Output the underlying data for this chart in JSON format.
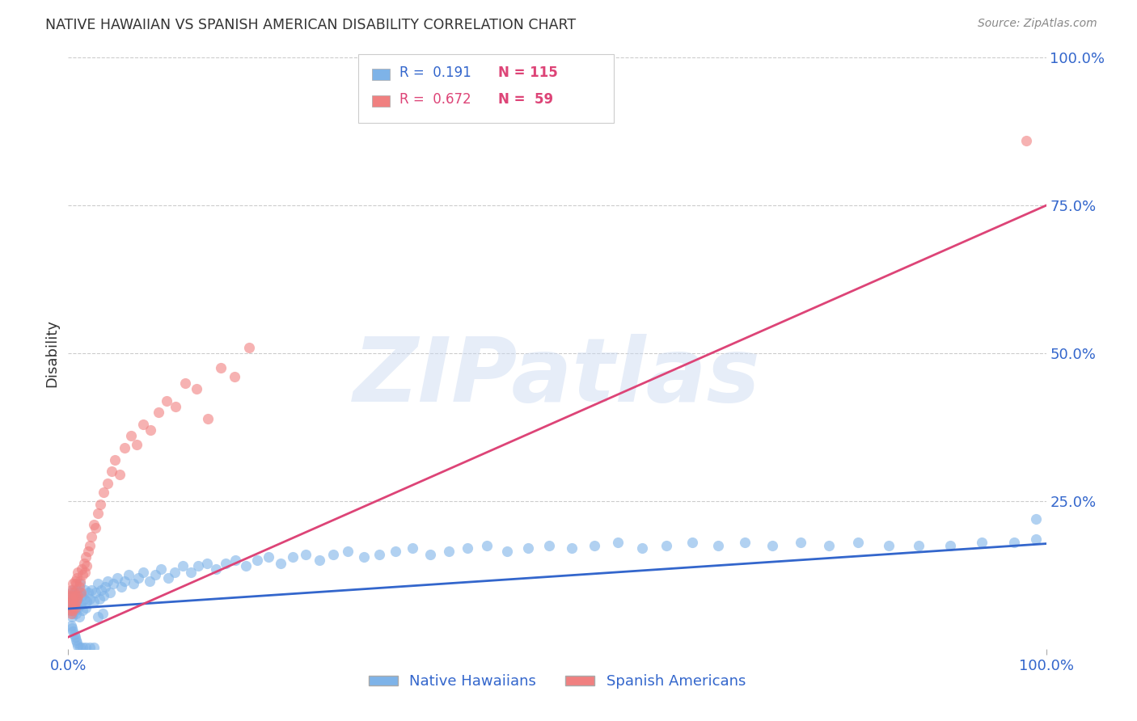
{
  "title": "NATIVE HAWAIIAN VS SPANISH AMERICAN DISABILITY CORRELATION CHART",
  "source": "Source: ZipAtlas.com",
  "ylabel": "Disability",
  "watermark": "ZIPatlas",
  "xlim": [
    0,
    1.0
  ],
  "ylim": [
    0,
    1.0
  ],
  "ytick_labels": [
    "100.0%",
    "75.0%",
    "50.0%",
    "25.0%"
  ],
  "ytick_positions": [
    1.0,
    0.75,
    0.5,
    0.25
  ],
  "grid_color": "#cccccc",
  "background_color": "#ffffff",
  "blue_color": "#7eb3e8",
  "pink_color": "#f08080",
  "blue_line_color": "#3366cc",
  "pink_line_color": "#dd4477",
  "title_color": "#333333",
  "axis_label_color": "#3366cc",
  "blue_r": 0.191,
  "pink_r": 0.672,
  "blue_n": 115,
  "pink_n": 59,
  "blue_intercept": 0.068,
  "blue_slope": 0.11,
  "pink_intercept": 0.02,
  "pink_slope": 0.73,
  "blue_x": [
    0.002,
    0.003,
    0.003,
    0.004,
    0.004,
    0.004,
    0.005,
    0.005,
    0.005,
    0.006,
    0.006,
    0.007,
    0.007,
    0.008,
    0.008,
    0.009,
    0.009,
    0.01,
    0.01,
    0.011,
    0.012,
    0.012,
    0.013,
    0.014,
    0.015,
    0.016,
    0.017,
    0.018,
    0.019,
    0.02,
    0.022,
    0.024,
    0.026,
    0.028,
    0.03,
    0.032,
    0.034,
    0.036,
    0.038,
    0.04,
    0.043,
    0.046,
    0.05,
    0.054,
    0.058,
    0.062,
    0.067,
    0.072,
    0.077,
    0.083,
    0.089,
    0.095,
    0.102,
    0.109,
    0.117,
    0.125,
    0.133,
    0.142,
    0.151,
    0.161,
    0.171,
    0.182,
    0.193,
    0.205,
    0.217,
    0.23,
    0.243,
    0.257,
    0.271,
    0.286,
    0.302,
    0.318,
    0.335,
    0.352,
    0.37,
    0.389,
    0.408,
    0.428,
    0.449,
    0.47,
    0.492,
    0.515,
    0.538,
    0.562,
    0.587,
    0.612,
    0.638,
    0.665,
    0.692,
    0.72,
    0.749,
    0.778,
    0.808,
    0.839,
    0.87,
    0.902,
    0.934,
    0.967,
    0.99,
    0.99,
    0.003,
    0.004,
    0.005,
    0.006,
    0.007,
    0.008,
    0.009,
    0.01,
    0.012,
    0.015,
    0.018,
    0.022,
    0.026,
    0.03,
    0.035
  ],
  "blue_y": [
    0.07,
    0.065,
    0.08,
    0.055,
    0.075,
    0.09,
    0.06,
    0.085,
    0.1,
    0.07,
    0.095,
    0.065,
    0.08,
    0.06,
    0.09,
    0.075,
    0.1,
    0.07,
    0.085,
    0.055,
    0.095,
    0.11,
    0.075,
    0.09,
    0.065,
    0.085,
    0.1,
    0.07,
    0.08,
    0.095,
    0.085,
    0.1,
    0.08,
    0.095,
    0.11,
    0.085,
    0.1,
    0.09,
    0.105,
    0.115,
    0.095,
    0.11,
    0.12,
    0.105,
    0.115,
    0.125,
    0.11,
    0.12,
    0.13,
    0.115,
    0.125,
    0.135,
    0.12,
    0.13,
    0.14,
    0.13,
    0.14,
    0.145,
    0.135,
    0.145,
    0.15,
    0.14,
    0.15,
    0.155,
    0.145,
    0.155,
    0.16,
    0.15,
    0.16,
    0.165,
    0.155,
    0.16,
    0.165,
    0.17,
    0.16,
    0.165,
    0.17,
    0.175,
    0.165,
    0.17,
    0.175,
    0.17,
    0.175,
    0.18,
    0.17,
    0.175,
    0.18,
    0.175,
    0.18,
    0.175,
    0.18,
    0.175,
    0.18,
    0.175,
    0.175,
    0.175,
    0.18,
    0.18,
    0.22,
    0.185,
    0.04,
    0.035,
    0.03,
    0.025,
    0.02,
    0.015,
    0.01,
    0.005,
    0.003,
    0.003,
    0.003,
    0.003,
    0.003,
    0.055,
    0.06
  ],
  "pink_x": [
    0.002,
    0.002,
    0.003,
    0.003,
    0.003,
    0.003,
    0.004,
    0.004,
    0.004,
    0.005,
    0.005,
    0.005,
    0.006,
    0.006,
    0.007,
    0.007,
    0.007,
    0.008,
    0.008,
    0.009,
    0.009,
    0.01,
    0.01,
    0.011,
    0.012,
    0.013,
    0.014,
    0.015,
    0.016,
    0.017,
    0.018,
    0.019,
    0.02,
    0.022,
    0.024,
    0.026,
    0.028,
    0.03,
    0.033,
    0.036,
    0.04,
    0.044,
    0.048,
    0.053,
    0.058,
    0.064,
    0.07,
    0.077,
    0.084,
    0.092,
    0.101,
    0.11,
    0.12,
    0.131,
    0.143,
    0.156,
    0.17,
    0.185,
    0.98
  ],
  "pink_y": [
    0.065,
    0.09,
    0.06,
    0.075,
    0.085,
    0.1,
    0.07,
    0.08,
    0.095,
    0.065,
    0.085,
    0.11,
    0.075,
    0.095,
    0.07,
    0.09,
    0.115,
    0.08,
    0.11,
    0.085,
    0.12,
    0.09,
    0.13,
    0.105,
    0.115,
    0.095,
    0.135,
    0.125,
    0.145,
    0.13,
    0.155,
    0.14,
    0.165,
    0.175,
    0.19,
    0.21,
    0.205,
    0.23,
    0.245,
    0.265,
    0.28,
    0.3,
    0.32,
    0.295,
    0.34,
    0.36,
    0.345,
    0.38,
    0.37,
    0.4,
    0.42,
    0.41,
    0.45,
    0.44,
    0.39,
    0.475,
    0.46,
    0.51,
    0.86
  ]
}
